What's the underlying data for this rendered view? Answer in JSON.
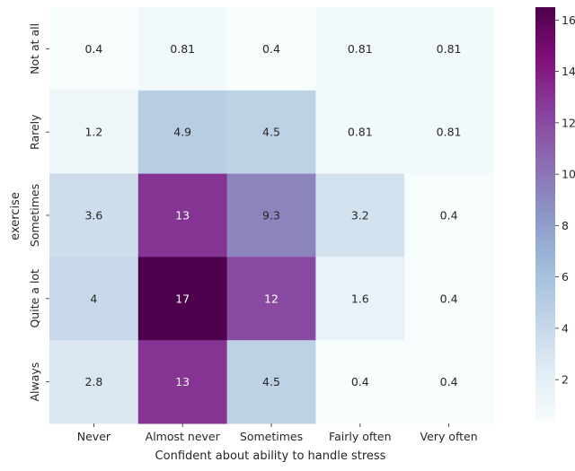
{
  "chart_data": {
    "type": "heatmap",
    "xlabel": "Confident about ability to handle stress",
    "ylabel": "exercise",
    "x_categories": [
      "Never",
      "Almost never",
      "Sometimes",
      "Fairly often",
      "Very often"
    ],
    "y_categories": [
      "Not at all",
      "Rarely",
      "Sometimes",
      "Quite a lot",
      "Always"
    ],
    "values": [
      [
        0.4,
        0.81,
        0.4,
        0.81,
        0.81
      ],
      [
        1.2,
        4.9,
        4.5,
        0.81,
        0.81
      ],
      [
        3.6,
        13,
        9.3,
        3.2,
        0.4
      ],
      [
        4,
        17,
        12,
        1.6,
        0.4
      ],
      [
        2.8,
        13,
        4.5,
        0.4,
        0.4
      ]
    ],
    "annotations": [
      [
        "0.4",
        "0.81",
        "0.4",
        "0.81",
        "0.81"
      ],
      [
        "1.2",
        "4.9",
        "4.5",
        "0.81",
        "0.81"
      ],
      [
        "3.6",
        "13",
        "9.3",
        "3.2",
        "0.4"
      ],
      [
        "4",
        "17",
        "12",
        "1.6",
        "0.4"
      ],
      [
        "2.8",
        "13",
        "4.5",
        "0.4",
        "0.4"
      ]
    ],
    "colorbar": {
      "min": 0.4,
      "max": 16.5,
      "ticks": [
        2,
        4,
        6,
        8,
        10,
        12,
        14,
        16
      ],
      "colormap": "BuPu",
      "colors": [
        "#f7fcfd",
        "#e0ecf4",
        "#bfd3e6",
        "#9ebcda",
        "#8c96c6",
        "#8c6bb1",
        "#88419d",
        "#810f7c",
        "#4d004b"
      ]
    }
  }
}
